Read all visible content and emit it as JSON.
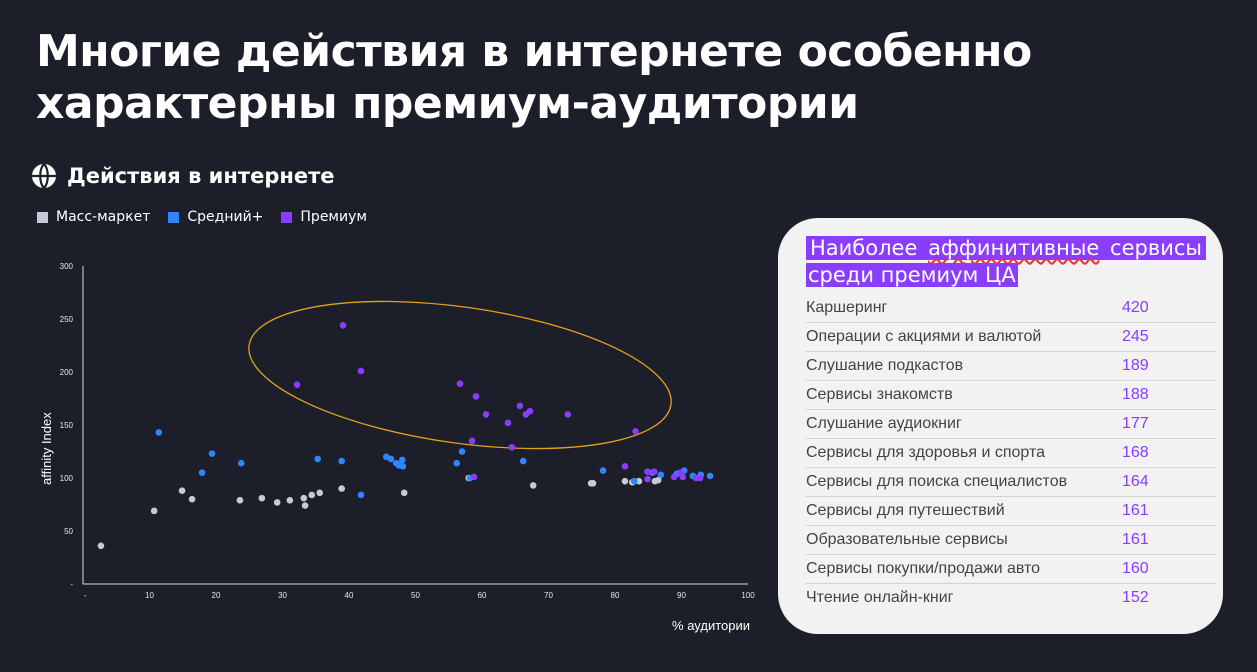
{
  "header": {
    "title_line1": "Многие действия в интернете особенно",
    "title_line2": "характерны премиум-аудитории"
  },
  "section": {
    "icon": "globe-icon",
    "label": "Действия в интернете"
  },
  "legend": [
    {
      "label": "Масс-маркет",
      "color": "#c6cad6"
    },
    {
      "label": "Средний+",
      "color": "#2f86ff"
    },
    {
      "label": "Премиум",
      "color": "#8a3cff"
    }
  ],
  "panel": {
    "title_part1": "Наиболее",
    "title_part2": "аффинитивные",
    "title_part3": "сервисы",
    "title_line2": "среди премиум ЦА",
    "rows": [
      {
        "label": "Каршеринг",
        "value": "420"
      },
      {
        "label": "Операции с акциями и валютой",
        "value": "245"
      },
      {
        "label": "Слушание подкастов",
        "value": "189"
      },
      {
        "label": "Сервисы знакомств",
        "value": "188"
      },
      {
        "label": "Слушание аудиокниг",
        "value": "177"
      },
      {
        "label": "Сервисы для здоровья и спорта",
        "value": "168"
      },
      {
        "label": "Сервисы для поиска специалистов",
        "value": "164"
      },
      {
        "label": "Сервисы для путешествий",
        "value": "161"
      },
      {
        "label": "Образовательные сервисы",
        "value": "161"
      },
      {
        "label": "Сервисы покупки/продажи авто",
        "value": "160"
      },
      {
        "label": "Чтение онлайн-книг",
        "value": "152"
      }
    ]
  },
  "chart_data": {
    "type": "scatter",
    "title": "Действия в интернете",
    "xlabel": "% аудитории",
    "ylabel": "affinity Index",
    "xlim": [
      0,
      100
    ],
    "ylim": [
      0,
      300
    ],
    "x_ticks": [
      "-",
      "10",
      "20",
      "30",
      "40",
      "50",
      "60",
      "70",
      "80",
      "90",
      "100"
    ],
    "y_ticks": [
      "-",
      "50",
      "100",
      "150",
      "200",
      "250",
      "300"
    ],
    "grid": false,
    "legend_position": "top-left",
    "annotation": "ellipse highlighting premium high-affinity points",
    "annotation_color": "#e3a21a",
    "series": [
      {
        "name": "Масс-маркет",
        "color": "#c6cad6",
        "points": [
          [
            2.7,
            36
          ],
          [
            10.7,
            69
          ],
          [
            14.9,
            88
          ],
          [
            16.4,
            80
          ],
          [
            23.6,
            79
          ],
          [
            26.9,
            81
          ],
          [
            29.2,
            77
          ],
          [
            31.1,
            79
          ],
          [
            33.2,
            81
          ],
          [
            33.4,
            74
          ],
          [
            34.4,
            84
          ],
          [
            35.6,
            86
          ],
          [
            38.9,
            90
          ],
          [
            48.3,
            86
          ],
          [
            58,
            100
          ],
          [
            67.7,
            93
          ],
          [
            76.4,
            95
          ],
          [
            76.7,
            95
          ],
          [
            81.5,
            97
          ],
          [
            82.6,
            96
          ],
          [
            83.6,
            97
          ],
          [
            86,
            97
          ],
          [
            86.5,
            98
          ]
        ]
      },
      {
        "name": "Средний+",
        "color": "#2f86ff",
        "points": [
          [
            11.4,
            143
          ],
          [
            17.9,
            105
          ],
          [
            19.4,
            123
          ],
          [
            23.8,
            114
          ],
          [
            35.3,
            118
          ],
          [
            38.9,
            116
          ],
          [
            41.8,
            84
          ],
          [
            45.6,
            120
          ],
          [
            46.3,
            118
          ],
          [
            47.1,
            114
          ],
          [
            47.5,
            112
          ],
          [
            48.1,
            111
          ],
          [
            48,
            117
          ],
          [
            56.2,
            114
          ],
          [
            57,
            125
          ],
          [
            58.2,
            100
          ],
          [
            66.2,
            116
          ],
          [
            78.2,
            107
          ],
          [
            82.9,
            97
          ],
          [
            85.6,
            105
          ],
          [
            86.9,
            103
          ],
          [
            89.3,
            104
          ],
          [
            90.4,
            107
          ],
          [
            91.7,
            102
          ],
          [
            92.9,
            103
          ],
          [
            94.3,
            102
          ]
        ]
      },
      {
        "name": "Премиум",
        "color": "#8a3cff",
        "points": [
          [
            39.1,
            244
          ],
          [
            32.2,
            188
          ],
          [
            41.8,
            201
          ],
          [
            56.7,
            189
          ],
          [
            59.1,
            177
          ],
          [
            60.6,
            160
          ],
          [
            65.7,
            168
          ],
          [
            66.6,
            160
          ],
          [
            67.2,
            163
          ],
          [
            63.9,
            152
          ],
          [
            72.9,
            160
          ],
          [
            58.5,
            135
          ],
          [
            64.5,
            129
          ],
          [
            83.1,
            144
          ],
          [
            58.8,
            101
          ],
          [
            81.5,
            111
          ],
          [
            84.9,
            106
          ],
          [
            85.9,
            106
          ],
          [
            84.9,
            99
          ],
          [
            89.8,
            105
          ],
          [
            90.2,
            101
          ],
          [
            92.2,
            100
          ],
          [
            92.8,
            100
          ],
          [
            88.9,
            101
          ]
        ]
      }
    ]
  }
}
